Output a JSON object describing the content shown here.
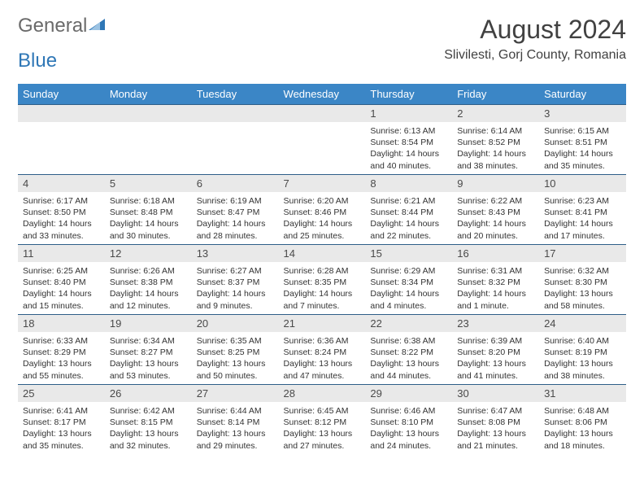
{
  "logo": {
    "word1": "General",
    "word2": "Blue"
  },
  "header": {
    "title": "August 2024",
    "location": "Slivilesti, Gorj County, Romania"
  },
  "colors": {
    "header_bg": "#3b86c6",
    "header_text": "#ffffff",
    "daynum_bg": "#e9e9e9",
    "row_border": "#2e5e88",
    "logo_gray": "#6a6a6a",
    "logo_blue": "#2f77b6",
    "title_color": "#414141"
  },
  "weekdays": [
    "Sunday",
    "Monday",
    "Tuesday",
    "Wednesday",
    "Thursday",
    "Friday",
    "Saturday"
  ],
  "weeks": [
    [
      null,
      null,
      null,
      null,
      {
        "n": "1",
        "sr": "6:13 AM",
        "ss": "8:54 PM",
        "dl": "14 hours and 40 minutes."
      },
      {
        "n": "2",
        "sr": "6:14 AM",
        "ss": "8:52 PM",
        "dl": "14 hours and 38 minutes."
      },
      {
        "n": "3",
        "sr": "6:15 AM",
        "ss": "8:51 PM",
        "dl": "14 hours and 35 minutes."
      }
    ],
    [
      {
        "n": "4",
        "sr": "6:17 AM",
        "ss": "8:50 PM",
        "dl": "14 hours and 33 minutes."
      },
      {
        "n": "5",
        "sr": "6:18 AM",
        "ss": "8:48 PM",
        "dl": "14 hours and 30 minutes."
      },
      {
        "n": "6",
        "sr": "6:19 AM",
        "ss": "8:47 PM",
        "dl": "14 hours and 28 minutes."
      },
      {
        "n": "7",
        "sr": "6:20 AM",
        "ss": "8:46 PM",
        "dl": "14 hours and 25 minutes."
      },
      {
        "n": "8",
        "sr": "6:21 AM",
        "ss": "8:44 PM",
        "dl": "14 hours and 22 minutes."
      },
      {
        "n": "9",
        "sr": "6:22 AM",
        "ss": "8:43 PM",
        "dl": "14 hours and 20 minutes."
      },
      {
        "n": "10",
        "sr": "6:23 AM",
        "ss": "8:41 PM",
        "dl": "14 hours and 17 minutes."
      }
    ],
    [
      {
        "n": "11",
        "sr": "6:25 AM",
        "ss": "8:40 PM",
        "dl": "14 hours and 15 minutes."
      },
      {
        "n": "12",
        "sr": "6:26 AM",
        "ss": "8:38 PM",
        "dl": "14 hours and 12 minutes."
      },
      {
        "n": "13",
        "sr": "6:27 AM",
        "ss": "8:37 PM",
        "dl": "14 hours and 9 minutes."
      },
      {
        "n": "14",
        "sr": "6:28 AM",
        "ss": "8:35 PM",
        "dl": "14 hours and 7 minutes."
      },
      {
        "n": "15",
        "sr": "6:29 AM",
        "ss": "8:34 PM",
        "dl": "14 hours and 4 minutes."
      },
      {
        "n": "16",
        "sr": "6:31 AM",
        "ss": "8:32 PM",
        "dl": "14 hours and 1 minute."
      },
      {
        "n": "17",
        "sr": "6:32 AM",
        "ss": "8:30 PM",
        "dl": "13 hours and 58 minutes."
      }
    ],
    [
      {
        "n": "18",
        "sr": "6:33 AM",
        "ss": "8:29 PM",
        "dl": "13 hours and 55 minutes."
      },
      {
        "n": "19",
        "sr": "6:34 AM",
        "ss": "8:27 PM",
        "dl": "13 hours and 53 minutes."
      },
      {
        "n": "20",
        "sr": "6:35 AM",
        "ss": "8:25 PM",
        "dl": "13 hours and 50 minutes."
      },
      {
        "n": "21",
        "sr": "6:36 AM",
        "ss": "8:24 PM",
        "dl": "13 hours and 47 minutes."
      },
      {
        "n": "22",
        "sr": "6:38 AM",
        "ss": "8:22 PM",
        "dl": "13 hours and 44 minutes."
      },
      {
        "n": "23",
        "sr": "6:39 AM",
        "ss": "8:20 PM",
        "dl": "13 hours and 41 minutes."
      },
      {
        "n": "24",
        "sr": "6:40 AM",
        "ss": "8:19 PM",
        "dl": "13 hours and 38 minutes."
      }
    ],
    [
      {
        "n": "25",
        "sr": "6:41 AM",
        "ss": "8:17 PM",
        "dl": "13 hours and 35 minutes."
      },
      {
        "n": "26",
        "sr": "6:42 AM",
        "ss": "8:15 PM",
        "dl": "13 hours and 32 minutes."
      },
      {
        "n": "27",
        "sr": "6:44 AM",
        "ss": "8:14 PM",
        "dl": "13 hours and 29 minutes."
      },
      {
        "n": "28",
        "sr": "6:45 AM",
        "ss": "8:12 PM",
        "dl": "13 hours and 27 minutes."
      },
      {
        "n": "29",
        "sr": "6:46 AM",
        "ss": "8:10 PM",
        "dl": "13 hours and 24 minutes."
      },
      {
        "n": "30",
        "sr": "6:47 AM",
        "ss": "8:08 PM",
        "dl": "13 hours and 21 minutes."
      },
      {
        "n": "31",
        "sr": "6:48 AM",
        "ss": "8:06 PM",
        "dl": "13 hours and 18 minutes."
      }
    ]
  ],
  "labels": {
    "sunrise": "Sunrise: ",
    "sunset": "Sunset: ",
    "daylight": "Daylight: "
  }
}
